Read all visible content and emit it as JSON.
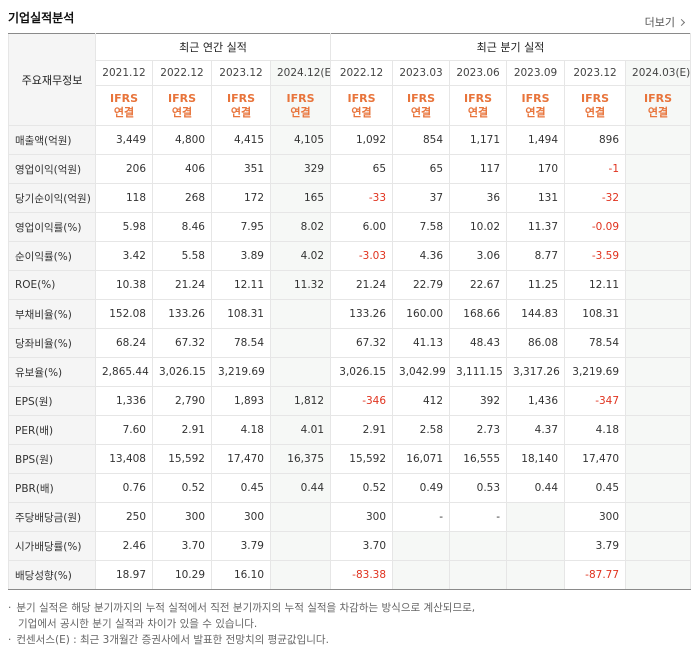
{
  "header": {
    "title": "기업실적분석",
    "more": "더보기"
  },
  "table": {
    "corner": "주요재무정보",
    "groups": [
      "최근 연간 실적",
      "최근 분기 실적"
    ],
    "periods": [
      "2021.12",
      "2022.12",
      "2023.12",
      "2024.12(E)",
      "2022.12",
      "2023.03",
      "2023.06",
      "2023.09",
      "2023.12",
      "2024.03(E)"
    ],
    "standard": [
      "IFRS",
      "연결"
    ],
    "rows": [
      {
        "label": "매출액(억원)",
        "cells": [
          "3,449",
          "4,800",
          "4,415",
          "4,105",
          "1,092",
          "854",
          "1,171",
          "1,494",
          "896",
          null
        ]
      },
      {
        "label": "영업이익(억원)",
        "cells": [
          "206",
          "406",
          "351",
          "329",
          "65",
          "65",
          "117",
          "170",
          "-1",
          null
        ]
      },
      {
        "label": "당기순이익(억원)",
        "cells": [
          "118",
          "268",
          "172",
          "165",
          "-33",
          "37",
          "36",
          "131",
          "-32",
          null
        ]
      },
      {
        "label": "영업이익률(%)",
        "cells": [
          "5.98",
          "8.46",
          "7.95",
          "8.02",
          "6.00",
          "7.58",
          "10.02",
          "11.37",
          "-0.09",
          null
        ]
      },
      {
        "label": "순이익률(%)",
        "cells": [
          "3.42",
          "5.58",
          "3.89",
          "4.02",
          "-3.03",
          "4.36",
          "3.06",
          "8.77",
          "-3.59",
          null
        ]
      },
      {
        "label": "ROE(%)",
        "cells": [
          "10.38",
          "21.24",
          "12.11",
          "11.32",
          "21.24",
          "22.79",
          "22.67",
          "11.25",
          "12.11",
          null
        ]
      },
      {
        "label": "부채비율(%)",
        "cells": [
          "152.08",
          "133.26",
          "108.31",
          null,
          "133.26",
          "160.00",
          "168.66",
          "144.83",
          "108.31",
          null
        ]
      },
      {
        "label": "당좌비율(%)",
        "cells": [
          "68.24",
          "67.32",
          "78.54",
          null,
          "67.32",
          "41.13",
          "48.43",
          "86.08",
          "78.54",
          null
        ]
      },
      {
        "label": "유보율(%)",
        "cells": [
          "2,865.44",
          "3,026.15",
          "3,219.69",
          null,
          "3,026.15",
          "3,042.99",
          "3,111.15",
          "3,317.26",
          "3,219.69",
          null
        ]
      },
      {
        "label": "EPS(원)",
        "cells": [
          "1,336",
          "2,790",
          "1,893",
          "1,812",
          "-346",
          "412",
          "392",
          "1,436",
          "-347",
          null
        ]
      },
      {
        "label": "PER(배)",
        "cells": [
          "7.60",
          "2.91",
          "4.18",
          "4.01",
          "2.91",
          "2.58",
          "2.73",
          "4.37",
          "4.18",
          null
        ]
      },
      {
        "label": "BPS(원)",
        "cells": [
          "13,408",
          "15,592",
          "17,470",
          "16,375",
          "15,592",
          "16,071",
          "16,555",
          "18,140",
          "17,470",
          null
        ]
      },
      {
        "label": "PBR(배)",
        "cells": [
          "0.76",
          "0.52",
          "0.45",
          "0.44",
          "0.52",
          "0.49",
          "0.53",
          "0.44",
          "0.45",
          null
        ]
      },
      {
        "label": "주당배당금(원)",
        "cells": [
          "250",
          "300",
          "300",
          null,
          "300",
          "-",
          "-",
          null,
          "300",
          null
        ]
      },
      {
        "label": "시가배당률(%)",
        "cells": [
          "2.46",
          "3.70",
          "3.79",
          null,
          "3.70",
          null,
          null,
          null,
          "3.79",
          null
        ]
      },
      {
        "label": "배당성향(%)",
        "cells": [
          "18.97",
          "10.29",
          "16.10",
          null,
          "-83.38",
          null,
          null,
          null,
          "-87.77",
          null
        ]
      }
    ]
  },
  "notes": [
    "분기 실적은 해당 분기까지의 누적 실적에서 직전 분기까지의 누적 실적을 차감하는 방식으로 계산되므로,",
    "기업에서 공시한 분기 실적과 차이가 있을 수 있습니다.",
    "컨센서스(E) : 최근 3개월간 증권사에서 발표한 전망치의 평균값입니다."
  ]
}
